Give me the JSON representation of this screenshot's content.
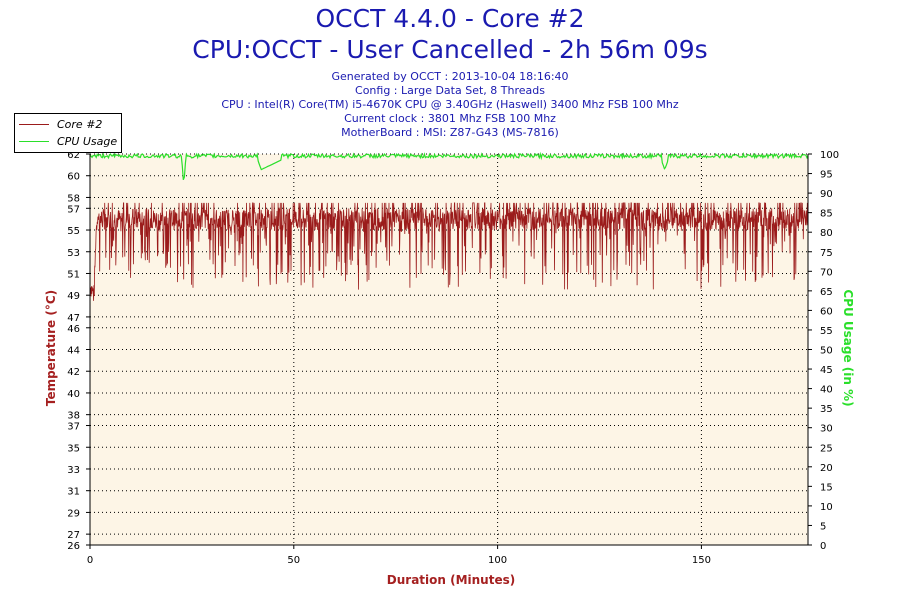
{
  "header": {
    "title1": "OCCT 4.4.0 - Core #2",
    "title2": "CPU:OCCT - User Cancelled - 2h 56m 09s",
    "generated": "Generated by OCCT : 2013-10-04 18:16:40",
    "config": "Config : Large Data Set, 8 Threads",
    "cpu": "CPU : Intel(R) Core(TM) i5-4670K CPU @ 3.40GHz (Haswell) 3400 Mhz FSB 100 Mhz",
    "clock": "Current clock : 3801 Mhz FSB 100 Mhz",
    "motherboard": "MotherBoard : MSI: Z87-G43 (MS-7816)"
  },
  "colors": {
    "title": "#1a1ab0",
    "temp": "#9b1b1b",
    "cpu": "#2adf2a",
    "plot_bg": "#fdf5e6",
    "axis_label": "#a52020"
  },
  "chart_data": {
    "type": "line",
    "xlabel": "Duration (Minutes)",
    "ylabel_left": "Temperature (°C)",
    "ylabel_right": "CPU Usage (in %)",
    "xlim": [
      0,
      176.15
    ],
    "ylim_left": [
      26,
      62
    ],
    "ylim_right": [
      0,
      100
    ],
    "x_ticks": [
      0,
      50,
      100,
      150
    ],
    "y_left_ticks": [
      26,
      27,
      29,
      31,
      33,
      35,
      37,
      38,
      40,
      42,
      44,
      46,
      47,
      49,
      51,
      53,
      55,
      57,
      58,
      60,
      62
    ],
    "y_right_ticks": [
      0,
      5,
      10,
      15,
      20,
      25,
      30,
      35,
      40,
      45,
      50,
      55,
      60,
      65,
      70,
      75,
      80,
      85,
      90,
      95,
      100
    ],
    "grid": true,
    "legend": "top-left",
    "series": [
      {
        "name": "Core #2",
        "axis": "left",
        "x": [
          0,
          1,
          1.5,
          2,
          3,
          5,
          7,
          10,
          12,
          15,
          20,
          25,
          30,
          33,
          35,
          40,
          45,
          48,
          50,
          55,
          60,
          65,
          70,
          75,
          80,
          85,
          90,
          95,
          100,
          105,
          110,
          115,
          120,
          125,
          130,
          135,
          140,
          141,
          143,
          145,
          150,
          155,
          160,
          165,
          170,
          172,
          174,
          176
        ],
        "y": [
          50,
          49,
          55,
          57,
          52,
          56,
          56,
          51,
          57,
          56,
          56,
          57,
          56,
          51,
          57,
          56,
          57,
          51,
          56,
          57,
          56,
          52,
          56,
          57,
          56,
          56,
          57,
          56,
          56,
          57,
          52,
          56,
          56,
          57,
          56,
          56,
          56,
          50,
          57,
          56,
          57,
          56,
          52,
          56,
          56,
          49,
          55,
          56
        ]
      },
      {
        "name": "CPU Usage",
        "axis": "right",
        "x": [
          0,
          10,
          20,
          22.5,
          23,
          23.5,
          30,
          41,
          42,
          48,
          50,
          60,
          80,
          100,
          120,
          140,
          141,
          142,
          160,
          165,
          176
        ],
        "y": [
          100,
          99,
          100,
          99,
          92,
          99,
          100,
          99,
          96,
          99,
          100,
          99,
          100,
          99,
          100,
          99,
          96,
          99,
          100,
          99,
          100
        ]
      }
    ]
  }
}
